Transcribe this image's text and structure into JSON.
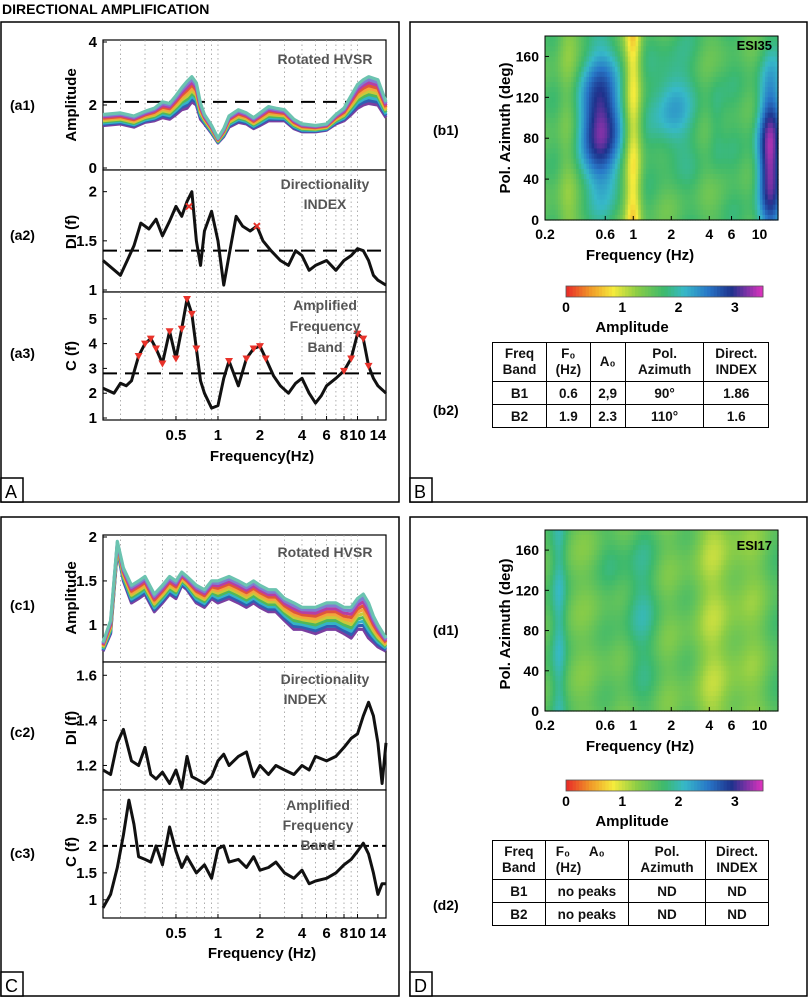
{
  "figure_title": "DIRECTIONAL AMPLIFICATION",
  "panels": {
    "A": {
      "corner": "A",
      "a1": {
        "label": "(a1)",
        "title": "Rotated HVSR",
        "ylabel": "Amplitude",
        "yticks": [
          "0",
          "2",
          "4"
        ]
      },
      "a2": {
        "label": "(a2)",
        "title_line1": "Directionality",
        "title_line2": "INDEX",
        "ylabel": "DI (f)",
        "yticks": [
          "1",
          "1.5",
          "2"
        ]
      },
      "a3": {
        "label": "(a3)",
        "title_line1": "Amplified",
        "title_line2": "Frequency",
        "title_line3": "Band",
        "ylabel": "C (f)",
        "yticks": [
          "1",
          "2",
          "3",
          "4",
          "5"
        ],
        "xticks": [
          "0.5",
          "1",
          "2",
          "4",
          "6",
          "8",
          "10",
          "14"
        ],
        "xlabel": "Frequency(Hz)"
      }
    },
    "B": {
      "corner": "B",
      "b1": {
        "label": "(b1)",
        "station": "ESI35",
        "ylabel": "Pol. Azimuth (deg)",
        "xlabel": "Frequency (Hz)",
        "yticks": [
          "0",
          "40",
          "80",
          "120",
          "160"
        ],
        "xticks": [
          "0.2",
          "0.6",
          "1",
          "2",
          "4",
          "6",
          "10"
        ]
      },
      "colorbar": {
        "ticks": [
          "0",
          "1",
          "2",
          "3"
        ],
        "label": "Amplitude"
      },
      "b2": {
        "label": "(b2)",
        "headers": {
          "band": [
            "Freq",
            "Band"
          ],
          "f0": [
            "F₀",
            "(Hz)"
          ],
          "a0": "A₀",
          "az": [
            "Pol.",
            "Azimuth"
          ],
          "di": [
            "Direct.",
            "INDEX"
          ]
        },
        "rows": [
          {
            "band": "B1",
            "f0": "0.6",
            "a0": "2,9",
            "az": "90°",
            "di": "1.86"
          },
          {
            "band": "B2",
            "f0": "1.9",
            "a0": "2.3",
            "az": "110°",
            "di": "1.6"
          }
        ]
      }
    },
    "C": {
      "corner": "C",
      "c1": {
        "label": "(c1)",
        "title": "Rotated HVSR",
        "ylabel": "Amplitude",
        "yticks": [
          "1",
          "1.5",
          "2"
        ]
      },
      "c2": {
        "label": "(c2)",
        "title_line1": "Directionality",
        "title_line2": "INDEX",
        "ylabel": "DI (f)",
        "yticks": [
          "1.2",
          "1.4",
          "1.6"
        ]
      },
      "c3": {
        "label": "(c3)",
        "title_line1": "Amplified",
        "title_line2": "Frequency",
        "title_line3": "Band",
        "ylabel": "C (f)",
        "yticks": [
          "1",
          "1.5",
          "2",
          "2.5"
        ],
        "xticks": [
          "0.5",
          "1",
          "2",
          "4",
          "6",
          "8",
          "10",
          "14"
        ],
        "xlabel": "Frequency (Hz)"
      }
    },
    "D": {
      "corner": "D",
      "d1": {
        "label": "(d1)",
        "station": "ESI17",
        "ylabel": "Pol. Azimuth (deg)",
        "xlabel": "Frequency (Hz)",
        "yticks": [
          "0",
          "40",
          "80",
          "120",
          "160"
        ],
        "xticks": [
          "0.2",
          "0.6",
          "1",
          "2",
          "4",
          "6",
          "10"
        ]
      },
      "colorbar": {
        "ticks": [
          "0",
          "1",
          "2",
          "3"
        ],
        "label": "Amplitude"
      },
      "d2": {
        "label": "(d2)",
        "headers": {
          "band": [
            "Freq",
            "Band"
          ],
          "f0": [
            "F₀",
            "(Hz)"
          ],
          "a0": "A₀",
          "az": [
            "Pol.",
            "Azimuth"
          ],
          "di": [
            "Direct.",
            "INDEX"
          ]
        },
        "rows": [
          {
            "band": "B1",
            "f0": "no peaks",
            "a0": "",
            "az": "ND",
            "di": "ND"
          },
          {
            "band": "B2",
            "f0": "no peaks",
            "a0": "",
            "az": "ND",
            "di": "ND"
          }
        ]
      }
    }
  },
  "chart_data": [
    {
      "id": "a1",
      "type": "line",
      "title": "Rotated HVSR",
      "xlabel": "Frequency(Hz)",
      "ylabel": "Amplitude",
      "xscale": "log",
      "xlim": [
        0.15,
        16
      ],
      "ylim": [
        0,
        4
      ],
      "threshold": 2.1,
      "x": [
        0.15,
        0.2,
        0.25,
        0.3,
        0.35,
        0.4,
        0.45,
        0.5,
        0.55,
        0.6,
        0.65,
        0.7,
        0.75,
        0.8,
        0.9,
        1.0,
        1.1,
        1.2,
        1.4,
        1.6,
        1.8,
        2.0,
        2.3,
        2.6,
        3.0,
        3.5,
        4.0,
        5.0,
        6.0,
        7.0,
        8.0,
        9.0,
        10.0,
        11.0,
        12.0,
        14.0,
        16.0
      ],
      "series_min": [
        1.35,
        1.4,
        1.3,
        1.45,
        1.5,
        1.6,
        1.55,
        1.7,
        1.85,
        1.9,
        2.1,
        2.0,
        1.55,
        1.4,
        1.1,
        0.8,
        1.0,
        1.3,
        1.45,
        1.4,
        1.25,
        1.35,
        1.5,
        1.5,
        1.5,
        1.25,
        1.15,
        1.15,
        1.2,
        1.4,
        1.5,
        1.7,
        1.9,
        2.0,
        2.05,
        2.0,
        1.6
      ],
      "series_max": [
        1.7,
        1.75,
        1.65,
        1.8,
        1.9,
        2.1,
        2.05,
        2.3,
        2.55,
        2.75,
        2.9,
        2.7,
        2.05,
        1.7,
        1.35,
        0.95,
        1.25,
        1.65,
        1.85,
        1.75,
        1.6,
        1.75,
        1.95,
        1.9,
        1.85,
        1.55,
        1.4,
        1.35,
        1.4,
        1.7,
        1.9,
        2.3,
        2.65,
        2.8,
        2.9,
        2.8,
        2.1
      ]
    },
    {
      "id": "a2",
      "type": "line",
      "title": "Directionality INDEX",
      "ylabel": "DI (f)",
      "xscale": "log",
      "ylim": [
        1,
        2.2
      ],
      "threshold": 1.4,
      "x": [
        0.15,
        0.2,
        0.25,
        0.28,
        0.32,
        0.36,
        0.4,
        0.45,
        0.5,
        0.55,
        0.6,
        0.65,
        0.7,
        0.75,
        0.8,
        0.9,
        1.0,
        1.1,
        1.2,
        1.35,
        1.5,
        1.7,
        1.9,
        2.1,
        2.4,
        2.8,
        3.2,
        3.6,
        4.0,
        4.5,
        5.0,
        6.0,
        7.0,
        8.0,
        9.0,
        10.0,
        11.0,
        12.0,
        13.0,
        14.0,
        16.0
      ],
      "y": [
        1.3,
        1.15,
        1.45,
        1.68,
        1.62,
        1.72,
        1.55,
        1.7,
        1.85,
        1.75,
        1.9,
        2.0,
        1.5,
        1.25,
        1.6,
        1.8,
        1.5,
        1.05,
        1.35,
        1.75,
        1.65,
        1.6,
        1.65,
        1.5,
        1.4,
        1.3,
        1.25,
        1.4,
        1.35,
        1.2,
        1.25,
        1.3,
        1.2,
        1.3,
        1.35,
        1.42,
        1.4,
        1.3,
        1.15,
        1.1,
        1.05
      ]
    },
    {
      "id": "a3",
      "type": "line",
      "title": "Amplified Frequency Band",
      "ylabel": "C (f)",
      "xscale": "log",
      "ylim": [
        1,
        6
      ],
      "threshold": 2.8,
      "x": [
        0.15,
        0.18,
        0.2,
        0.22,
        0.24,
        0.27,
        0.3,
        0.33,
        0.36,
        0.4,
        0.45,
        0.5,
        0.55,
        0.6,
        0.65,
        0.7,
        0.75,
        0.8,
        0.9,
        1.0,
        1.1,
        1.2,
        1.4,
        1.6,
        1.8,
        2.0,
        2.2,
        2.5,
        2.8,
        3.2,
        3.6,
        4.0,
        4.5,
        5.0,
        5.5,
        6.0,
        7.0,
        8.0,
        9.0,
        10.0,
        11.0,
        12.0,
        13.0,
        14.0,
        16.0
      ],
      "y": [
        2.2,
        2.0,
        2.4,
        2.3,
        2.5,
        3.5,
        4.0,
        4.2,
        3.8,
        3.2,
        4.5,
        3.4,
        4.6,
        5.8,
        5.2,
        3.8,
        2.5,
        2.0,
        1.4,
        1.5,
        2.6,
        3.3,
        2.3,
        3.4,
        3.8,
        3.9,
        3.4,
        2.7,
        2.3,
        2.0,
        2.4,
        2.6,
        2.0,
        1.6,
        1.9,
        2.3,
        2.6,
        2.9,
        3.4,
        4.4,
        4.2,
        3.1,
        2.6,
        2.3,
        2.0
      ]
    },
    {
      "id": "b1",
      "type": "heatmap",
      "station": "ESI35",
      "xlabel": "Frequency (Hz)",
      "ylabel": "Pol. Azimuth (deg)",
      "xscale": "log",
      "xlim": [
        0.2,
        14
      ],
      "ylim": [
        0,
        180
      ],
      "clim": [
        0,
        3.5
      ],
      "blobs": [
        {
          "f": 0.55,
          "az": 95,
          "amp": 3.1,
          "sf": 0.14,
          "sa": 45
        },
        {
          "f": 2.0,
          "az": 110,
          "amp": 2.3,
          "sf": 0.1,
          "sa": 35
        },
        {
          "f": 12.0,
          "az": 60,
          "amp": 3.3,
          "sf": 0.07,
          "sa": 55
        },
        {
          "f": 4.5,
          "az": 95,
          "amp": 1.9,
          "sf": 0.05,
          "sa": 35
        }
      ],
      "low_bands": [
        {
          "f": 1.0,
          "depth": 0.9,
          "sf": 0.05
        },
        {
          "f": 0.3,
          "depth": 0.4,
          "sf": 0.06
        }
      ]
    },
    {
      "id": "c1",
      "type": "line",
      "title": "Rotated HVSR",
      "ylabel": "Amplitude",
      "xscale": "log",
      "xlim": [
        0.15,
        16
      ],
      "ylim": [
        0.6,
        2.0
      ],
      "x": [
        0.15,
        0.17,
        0.19,
        0.21,
        0.24,
        0.27,
        0.3,
        0.35,
        0.4,
        0.45,
        0.5,
        0.55,
        0.6,
        0.7,
        0.8,
        0.9,
        1.0,
        1.2,
        1.4,
        1.6,
        1.8,
        2.0,
        2.3,
        2.6,
        3.0,
        3.5,
        4.0,
        5.0,
        6.0,
        7.0,
        8.0,
        9.0,
        10.0,
        11.0,
        12.0,
        13.0,
        14.0,
        16.0
      ],
      "series_min": [
        0.7,
        0.9,
        1.85,
        1.5,
        1.25,
        1.3,
        1.35,
        1.15,
        1.25,
        1.35,
        1.3,
        1.45,
        1.4,
        1.25,
        1.2,
        1.3,
        1.25,
        1.3,
        1.25,
        1.2,
        1.25,
        1.2,
        1.15,
        1.15,
        1.05,
        0.95,
        0.95,
        0.9,
        0.95,
        0.95,
        0.9,
        0.85,
        0.95,
        0.95,
        0.85,
        0.8,
        0.75,
        0.7
      ],
      "series_max": [
        0.8,
        1.05,
        1.95,
        1.65,
        1.45,
        1.5,
        1.55,
        1.35,
        1.45,
        1.55,
        1.5,
        1.6,
        1.55,
        1.45,
        1.4,
        1.5,
        1.5,
        1.55,
        1.5,
        1.45,
        1.5,
        1.45,
        1.4,
        1.4,
        1.3,
        1.25,
        1.2,
        1.2,
        1.25,
        1.25,
        1.2,
        1.2,
        1.3,
        1.35,
        1.25,
        1.1,
        1.0,
        0.85
      ]
    },
    {
      "id": "c2",
      "type": "line",
      "title": "Directionality INDEX",
      "ylabel": "DI (f)",
      "xscale": "log",
      "ylim": [
        1.1,
        1.65
      ],
      "x": [
        0.15,
        0.17,
        0.19,
        0.21,
        0.24,
        0.27,
        0.3,
        0.33,
        0.36,
        0.4,
        0.45,
        0.5,
        0.55,
        0.6,
        0.65,
        0.7,
        0.8,
        0.9,
        1.0,
        1.1,
        1.2,
        1.4,
        1.6,
        1.8,
        2.0,
        2.3,
        2.6,
        3.0,
        3.5,
        4.0,
        4.5,
        5.0,
        6.0,
        7.0,
        8.0,
        9.0,
        10.0,
        11.0,
        12.0,
        13.0,
        14.0,
        15.0,
        16.0
      ],
      "y": [
        1.18,
        1.16,
        1.3,
        1.36,
        1.22,
        1.2,
        1.28,
        1.16,
        1.14,
        1.17,
        1.12,
        1.18,
        1.1,
        1.24,
        1.15,
        1.14,
        1.12,
        1.15,
        1.22,
        1.25,
        1.2,
        1.24,
        1.26,
        1.15,
        1.2,
        1.16,
        1.2,
        1.18,
        1.16,
        1.2,
        1.18,
        1.24,
        1.22,
        1.24,
        1.28,
        1.32,
        1.34,
        1.42,
        1.48,
        1.42,
        1.3,
        1.12,
        1.3
      ]
    },
    {
      "id": "c3",
      "type": "line",
      "title": "Amplified Frequency Band",
      "ylabel": "C (f)",
      "xscale": "log",
      "ylim": [
        0.7,
        3.0
      ],
      "threshold": 2.0,
      "x": [
        0.15,
        0.17,
        0.19,
        0.21,
        0.23,
        0.25,
        0.27,
        0.3,
        0.33,
        0.36,
        0.4,
        0.45,
        0.5,
        0.55,
        0.6,
        0.7,
        0.8,
        0.9,
        1.0,
        1.1,
        1.2,
        1.4,
        1.6,
        1.8,
        2.0,
        2.3,
        2.6,
        3.0,
        3.5,
        4.0,
        4.5,
        5.0,
        6.0,
        7.0,
        8.0,
        9.0,
        10.0,
        11.0,
        12.0,
        13.0,
        14.0,
        15.0,
        16.0
      ],
      "y": [
        0.85,
        1.1,
        1.6,
        2.2,
        2.85,
        2.4,
        1.8,
        1.75,
        1.7,
        2.0,
        1.65,
        2.35,
        1.9,
        1.6,
        1.8,
        1.5,
        1.65,
        1.4,
        1.95,
        2.0,
        1.7,
        1.75,
        1.6,
        1.8,
        1.55,
        1.6,
        1.7,
        1.5,
        1.4,
        1.55,
        1.3,
        1.35,
        1.4,
        1.5,
        1.65,
        1.75,
        1.9,
        2.05,
        1.85,
        1.5,
        1.1,
        1.3,
        1.3
      ]
    },
    {
      "id": "d1",
      "type": "heatmap",
      "station": "ESI17",
      "xlabel": "Frequency (Hz)",
      "ylabel": "Pol. Azimuth (deg)",
      "xscale": "log",
      "xlim": [
        0.2,
        14
      ],
      "ylim": [
        0,
        180
      ],
      "clim": [
        0,
        3.5
      ],
      "base": 1.55,
      "blobs": [
        {
          "f": 0.26,
          "az": 90,
          "amp": 1.9,
          "sf": 0.04,
          "sa": 120
        },
        {
          "f": 1.1,
          "az": 100,
          "amp": 1.85,
          "sf": 0.1,
          "sa": 50
        },
        {
          "f": 0.7,
          "az": 150,
          "amp": 1.75,
          "sf": 0.08,
          "sa": 30
        }
      ],
      "low_bands": [
        {
          "f": 5.0,
          "depth": 0.35,
          "sf": 0.2
        },
        {
          "f": 0.5,
          "depth": 0.15,
          "sf": 0.08
        }
      ]
    }
  ],
  "colors": {
    "threshold": "#000000",
    "marker": "#e8322a",
    "curve": "#111111"
  }
}
